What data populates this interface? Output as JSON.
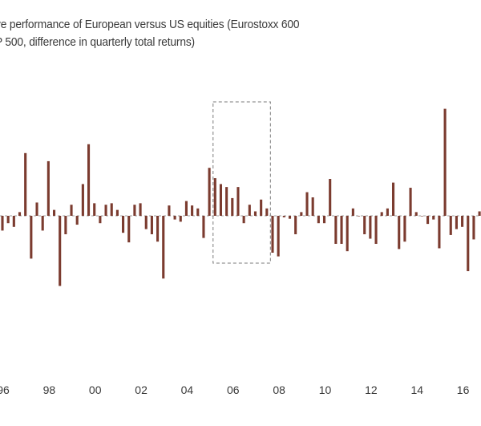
{
  "chart_data": {
    "type": "bar",
    "title_lines": [
      "ve performance of European versus US equities (Eurostoxx 600",
      "P 500, difference in quarterly total returns)"
    ],
    "xlabel": "",
    "ylabel": "",
    "x_ticks": [
      "96",
      "98",
      "00",
      "02",
      "04",
      "06",
      "08",
      "10",
      "12",
      "14",
      "16"
    ],
    "x_tick_quarter_index": [
      0,
      8,
      16,
      24,
      32,
      40,
      48,
      56,
      64,
      72,
      80
    ],
    "ylim": [
      -15,
      22
    ],
    "grid": false,
    "bar_color": "#7b3b2f",
    "highlight_box": {
      "start_quarter": 37,
      "end_quarter": 46,
      "style": "dashed"
    },
    "values": [
      -2,
      -1,
      -1.5,
      0.5,
      8.5,
      -5.8,
      1.8,
      -2,
      7.4,
      0.8,
      -9.5,
      -2.5,
      1.5,
      -1.2,
      4.3,
      9.7,
      1.7,
      -1,
      1.5,
      1.7,
      0.8,
      -2.3,
      -3.6,
      1.5,
      1.7,
      -1.8,
      -2.5,
      -3.5,
      -8.5,
      1.4,
      -0.5,
      -0.8,
      2,
      1.4,
      1,
      -3,
      6.5,
      5.1,
      4.3,
      3.9,
      2.4,
      3.9,
      -1,
      1.5,
      0.6,
      2.2,
      1,
      -5,
      -5.5,
      -0.2,
      -0.4,
      -2.5,
      0.5,
      3.2,
      2.5,
      -1,
      -1,
      5,
      -3.8,
      -3.8,
      -4.8,
      1,
      0,
      -2.5,
      -3.1,
      -3.8,
      0.5,
      1,
      4.5,
      -4.5,
      -3.5,
      3.8,
      0.5,
      0,
      -1.1,
      -0.5,
      -4.4,
      14.5,
      -2.6,
      -1.8,
      -1.5,
      -7.5,
      -3.2,
      0.6
    ]
  }
}
